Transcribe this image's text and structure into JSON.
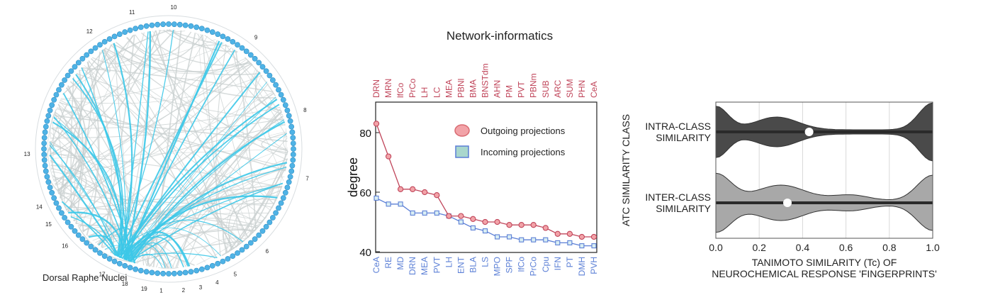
{
  "left_panel": {
    "caption": "Dorsal Raphe Nuclei",
    "sector_labels": [
      "10",
      "9",
      "8",
      "7",
      "6",
      "5",
      "4",
      "3",
      "2",
      "1",
      "19",
      "18",
      "17",
      "16",
      "15",
      "14",
      "13",
      "12",
      "11"
    ],
    "node_color": "#4fb3e6",
    "highlight_color": "#3cc8e8",
    "edge_color": "#c8cfcf"
  },
  "middle_panel": {
    "title": "Network-informatics",
    "outgoing_color": "#c0455a",
    "incoming_color": "#5b7fd6",
    "chart_data": {
      "type": "line",
      "title": "Network-informatics",
      "ylabel": "degree",
      "ylim": [
        40,
        90
      ],
      "yticks": [
        40,
        60,
        80
      ],
      "top_categories": [
        "DRN",
        "MRN",
        "lfCo",
        "PrCo",
        "LH",
        "LC",
        "MEA",
        "PBNl",
        "BMA",
        "BNSTdm",
        "AHN",
        "PM",
        "PVT",
        "PBNm",
        "SUB",
        "ARC",
        "SUM",
        "PHN",
        "CeA"
      ],
      "bottom_categories": [
        "CeA",
        "RE",
        "MD",
        "DRN",
        "MEA",
        "PVT",
        "LH",
        "ENT",
        "BLA",
        "LS",
        "MPO",
        "SPF",
        "lfCo",
        "PrCo",
        "Cpu",
        "IFN",
        "PT",
        "DMH",
        "PVH"
      ],
      "series": [
        {
          "name": "Outgoing projections",
          "values": [
            83,
            72,
            61,
            61,
            60,
            59,
            52,
            52,
            51,
            50,
            50,
            49,
            49,
            49,
            48,
            46,
            46,
            45,
            45
          ]
        },
        {
          "name": "Incoming projections",
          "values": [
            58,
            56,
            56,
            53,
            53,
            53,
            52,
            50,
            48,
            47,
            45,
            45,
            44,
            44,
            44,
            43,
            43,
            42,
            42
          ]
        }
      ],
      "legend": [
        "Outgoing projections",
        "Incoming projections"
      ]
    }
  },
  "right_panel": {
    "dark_color": "#4a4a4a",
    "light_color": "#a8a8a8",
    "chart_data": {
      "type": "violin",
      "xlabel": "TANIMOTO SIMILARITY (Tc) OF NEUROCHEMICAL RESPONSE 'FINGERPRINTS'",
      "xlabel_lines": [
        "TANIMOTO SIMILARITY (Tc) OF",
        "NEUROCHEMICAL RESPONSE 'FINGERPRINTS'"
      ],
      "ylabel": "ATC SIMILARITY CLASS",
      "xlim": [
        0,
        1
      ],
      "xticks": [
        "0.0",
        "0.2",
        "0.4",
        "0.6",
        "0.8",
        "1.0"
      ],
      "xtick_values": [
        0,
        0.2,
        0.4,
        0.6,
        0.8,
        1.0
      ],
      "grid": true,
      "categories": [
        {
          "label_lines": [
            "INTRA-CLASS",
            "SIMILARITY"
          ],
          "median": 0.43
        },
        {
          "label_lines": [
            "INTER-CLASS",
            "SIMILARITY"
          ],
          "median": 0.33
        }
      ]
    }
  }
}
